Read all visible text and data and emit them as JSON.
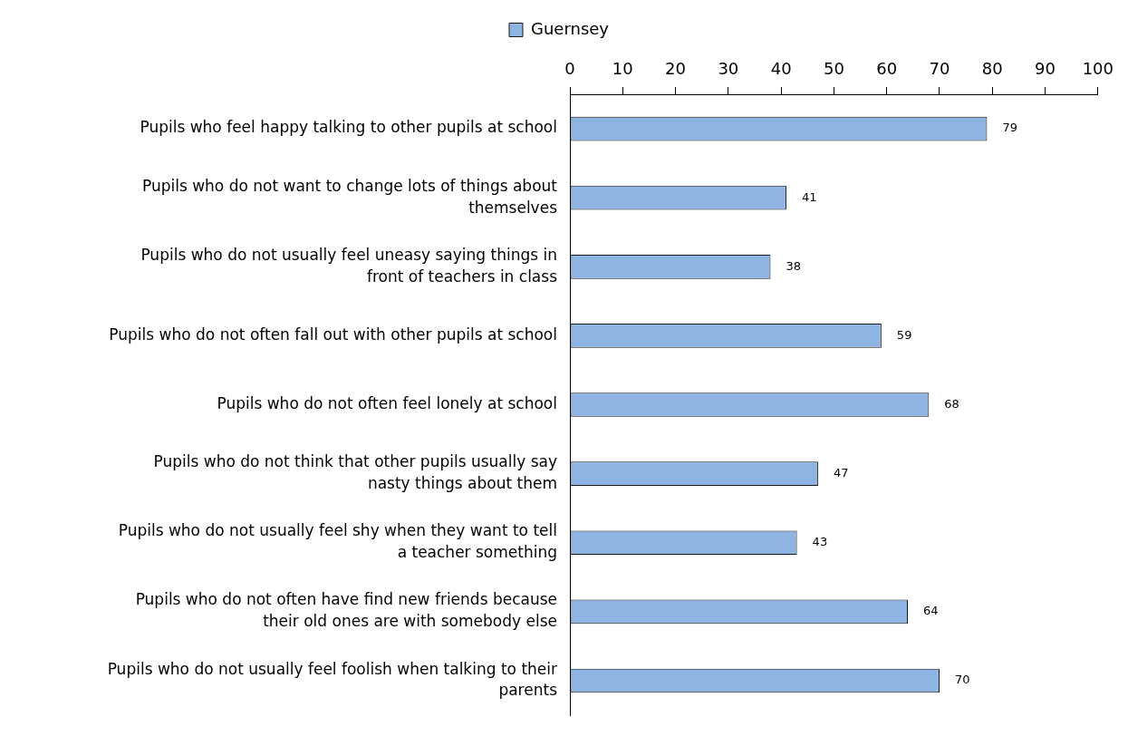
{
  "chart_data": {
    "type": "bar",
    "orientation": "horizontal",
    "categories": [
      "Pupils who feel happy talking to other pupils at school",
      "Pupils who do not want to change lots of things about themselves",
      "Pupils who do not usually feel uneasy saying things in front of teachers in class",
      "Pupils who do not often fall out with other pupils at school",
      "Pupils who do not often feel lonely at school",
      "Pupils who do not think that other pupils usually say nasty things about them",
      "Pupils who do not usually feel shy when they want to tell a teacher something",
      "Pupils who do not often have find new friends because their old ones are with somebody else",
      "Pupils who do not usually feel foolish when talking to their parents"
    ],
    "series": [
      {
        "name": "Guernsey",
        "color": "#8eb4e3",
        "values": [
          79,
          41,
          38,
          59,
          68,
          47,
          43,
          64,
          70
        ]
      }
    ],
    "xlim": [
      0,
      100
    ],
    "xticks": [
      0,
      10,
      20,
      30,
      40,
      50,
      60,
      70,
      80,
      90,
      100
    ],
    "grid": false,
    "legend": "top",
    "data_labels": true
  }
}
